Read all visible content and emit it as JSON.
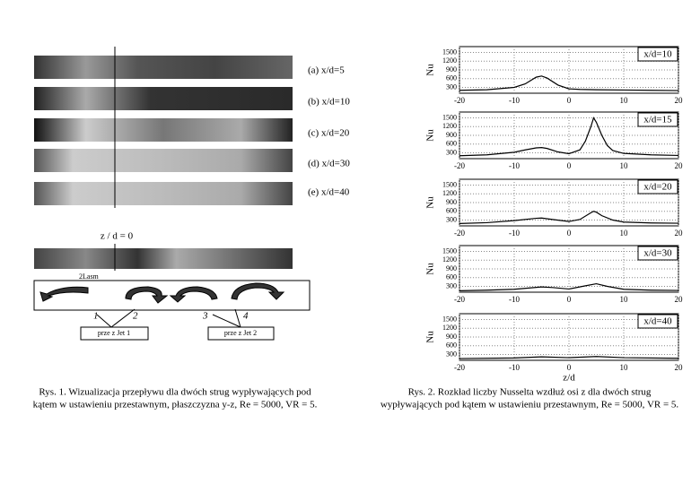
{
  "left_panel": {
    "labels": [
      "(a) x/d=5",
      "(b) x/d=10",
      "(c) x/d=20",
      "(d) x/d=30",
      "(e) x/d=40"
    ],
    "z_label": "z / d = 0",
    "small_label": "2Lasm",
    "numbers": [
      "1",
      "2",
      "3",
      "4"
    ],
    "jets": [
      "prze z Jet 1",
      "prze z Jet 2"
    ]
  },
  "captions": {
    "fig1": [
      "Rys. 1. Wizualizacja przepływu dla dwóch strug wypływających pod",
      "kątem w ustawieniu przestawnym, płaszczyzna y-z, Re = 5000, VR = 5."
    ],
    "fig2": [
      "Rys. 2. Rozkład liczby Nusselta wzdłuż osi z dla dwóch strug",
      "wypływających pod kątem w ustawieniu przestawnym, Re = 5000, VR = 5."
    ]
  },
  "chart_data": [
    {
      "type": "line",
      "annotation": "x/d=10",
      "ylabel": "Nu",
      "color": "#000000",
      "grid": true,
      "x": [
        -20,
        -15,
        -10,
        -8,
        -6,
        -5,
        -4,
        -2,
        0,
        2,
        5,
        10,
        15,
        20
      ],
      "values": [
        200,
        220,
        300,
        420,
        650,
        690,
        620,
        380,
        250,
        230,
        220,
        210,
        200,
        190
      ],
      "xlim": [
        -20,
        20
      ],
      "xticks": [
        -20,
        -10,
        0,
        10,
        20
      ],
      "ylim": [
        100,
        1700
      ],
      "yticks": [
        300,
        600,
        900,
        1200,
        1500
      ]
    },
    {
      "type": "line",
      "annotation": "x/d=15",
      "ylabel": "Nu",
      "color": "#000000",
      "grid": true,
      "x": [
        -20,
        -15,
        -10,
        -8,
        -6,
        -5,
        -4,
        -2,
        0,
        2,
        3,
        4,
        4.5,
        5,
        6,
        7,
        8,
        10,
        15,
        20
      ],
      "values": [
        200,
        230,
        320,
        400,
        470,
        480,
        450,
        330,
        270,
        400,
        700,
        1200,
        1500,
        1350,
        900,
        550,
        380,
        280,
        230,
        210
      ],
      "xlim": [
        -20,
        20
      ],
      "xticks": [
        -20,
        -10,
        0,
        10,
        20
      ],
      "ylim": [
        100,
        1700
      ],
      "yticks": [
        300,
        600,
        900,
        1200,
        1500
      ]
    },
    {
      "type": "line",
      "annotation": "x/d=20",
      "ylabel": "Nu",
      "color": "#000000",
      "grid": true,
      "x": [
        -20,
        -15,
        -10,
        -6,
        -5,
        -3,
        0,
        2,
        4,
        4.5,
        5,
        6,
        8,
        10,
        15,
        20
      ],
      "values": [
        180,
        210,
        280,
        360,
        370,
        320,
        250,
        320,
        550,
        600,
        570,
        450,
        300,
        230,
        200,
        190
      ],
      "xlim": [
        -20,
        20
      ],
      "xticks": [
        -20,
        -10,
        0,
        10,
        20
      ],
      "ylim": [
        100,
        1700
      ],
      "yticks": [
        300,
        600,
        900,
        1200,
        1500
      ]
    },
    {
      "type": "line",
      "annotation": "x/d=30",
      "ylabel": "Nu",
      "color": "#000000",
      "grid": true,
      "x": [
        -20,
        -15,
        -10,
        -5,
        -3,
        0,
        3,
        5,
        7,
        10,
        15,
        20
      ],
      "values": [
        150,
        170,
        200,
        280,
        260,
        210,
        320,
        390,
        300,
        200,
        170,
        160
      ],
      "xlim": [
        -20,
        20
      ],
      "xticks": [
        -20,
        -10,
        0,
        10,
        20
      ],
      "ylim": [
        100,
        1700
      ],
      "yticks": [
        300,
        600,
        900,
        1200,
        1500
      ]
    },
    {
      "type": "line",
      "annotation": "x/d=40",
      "ylabel": "Nu",
      "xlabel": "z/d",
      "color": "#000000",
      "grid": true,
      "x": [
        -20,
        -10,
        -5,
        0,
        5,
        10,
        20
      ],
      "values": [
        160,
        180,
        220,
        190,
        230,
        190,
        170
      ],
      "xlim": [
        -20,
        20
      ],
      "xticks": [
        -20,
        -10,
        0,
        10,
        20
      ],
      "ylim": [
        100,
        1700
      ],
      "yticks": [
        300,
        600,
        900,
        1200,
        1500
      ]
    }
  ]
}
